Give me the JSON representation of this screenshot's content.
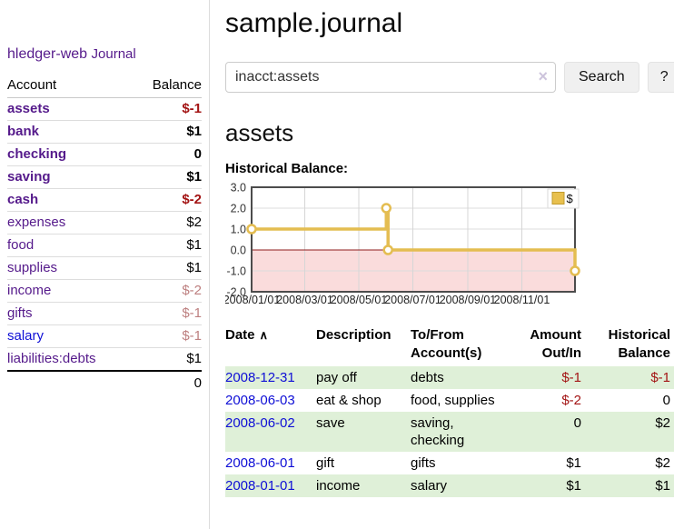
{
  "sidebar": {
    "brand": "hledger-web",
    "nav": {
      "journal": "Journal"
    },
    "accounts": {
      "headers": {
        "account": "Account",
        "balance": "Balance"
      },
      "rows": [
        {
          "name": "assets",
          "balance": "$-1"
        },
        {
          "name": "bank",
          "balance": "$1"
        },
        {
          "name": "checking",
          "balance": "0"
        },
        {
          "name": "saving",
          "balance": "$1"
        },
        {
          "name": "cash",
          "balance": "$-2"
        },
        {
          "name": "expenses",
          "balance": "$2"
        },
        {
          "name": "food",
          "balance": "$1"
        },
        {
          "name": "supplies",
          "balance": "$1"
        },
        {
          "name": "income",
          "balance": "$-2"
        },
        {
          "name": "gifts",
          "balance": "$-1"
        },
        {
          "name": "salary",
          "balance": "$-1"
        },
        {
          "name": "liabilities:debts",
          "balance": "$1"
        }
      ],
      "total": "0"
    }
  },
  "main": {
    "title": "sample.journal",
    "search": {
      "value": "inacct:assets",
      "clear_icon": "×",
      "button": "Search",
      "help": "?"
    },
    "account_heading": "assets",
    "chart_label": "Historical Balance:"
  },
  "chart_data": {
    "type": "line",
    "subtype": "step",
    "title": "Historical Balance",
    "series": [
      {
        "name": "$",
        "points": [
          [
            "2008-01-01",
            1
          ],
          [
            "2008-06-01",
            2
          ],
          [
            "2008-06-03",
            0
          ],
          [
            "2008-12-31",
            -1
          ]
        ]
      }
    ],
    "xrange": [
      "2008-01-01",
      "2008-12-31"
    ],
    "ylim": [
      -2,
      3
    ],
    "y_ticks": [
      3.0,
      2.0,
      1.0,
      0.0,
      -1.0,
      -2.0
    ],
    "x_ticks": [
      "2008/01/01",
      "2008/03/01",
      "2008/05/01",
      "2008/07/01",
      "2008/09/01",
      "2008/11/01"
    ],
    "legend": "$",
    "legend_position": "top-right",
    "grid": true,
    "colors": {
      "line": "#e4bd51",
      "marker_fill": "#ffffff",
      "negative_area": "#fadcdc",
      "zero_line": "#8f1d1d",
      "frame": "#4c4c4c",
      "grid": "#dcdcdc",
      "legend_swatch": "#e8c04e"
    }
  },
  "register": {
    "headers": {
      "date": "Date",
      "description": "Description",
      "tofrom": "To/From Account(s)",
      "amount": "Amount Out/In",
      "balance": "Historical Balance"
    },
    "sort_icon": "∧",
    "rows": [
      {
        "date": "2008-12-31",
        "description": "pay off",
        "tofrom": "debts",
        "amount": "$-1",
        "balance": "$-1"
      },
      {
        "date": "2008-06-03",
        "description": "eat & shop",
        "tofrom": "food, supplies",
        "amount": "$-2",
        "balance": "0"
      },
      {
        "date": "2008-06-02",
        "description": "save",
        "tofrom": "saving, checking",
        "amount": "0",
        "balance": "$2"
      },
      {
        "date": "2008-06-01",
        "description": "gift",
        "tofrom": "gifts",
        "amount": "$1",
        "balance": "$2"
      },
      {
        "date": "2008-01-01",
        "description": "income",
        "tofrom": "salary",
        "amount": "$1",
        "balance": "$1"
      }
    ]
  }
}
